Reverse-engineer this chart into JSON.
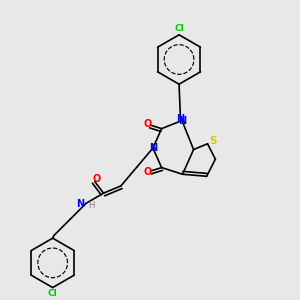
{
  "bg_color": "#e8e8e8",
  "atom_colors": {
    "C": "#000000",
    "N": "#0000ff",
    "O": "#ff0000",
    "S": "#cccc00",
    "Cl": "#00cc00",
    "H": "#808080"
  },
  "bond_color": "#000000",
  "figsize": [
    3.0,
    3.0
  ],
  "dpi": 100
}
